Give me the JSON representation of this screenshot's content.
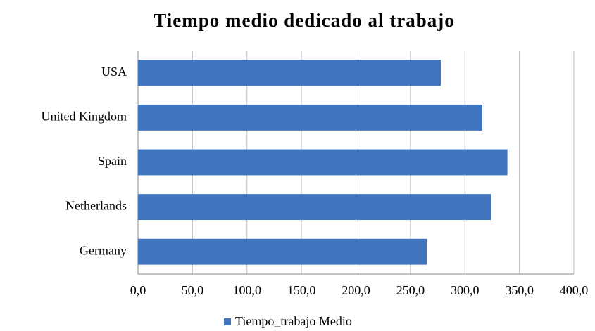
{
  "chart_data": {
    "type": "bar",
    "orientation": "horizontal",
    "title": "Tiempo medio dedicado al trabajo",
    "categories": [
      "USA",
      "United Kingdom",
      "Spain",
      "Netherlands",
      "Germany"
    ],
    "series": [
      {
        "name": "Tiempo_trabajo Medio",
        "color": "#4275c0",
        "values": [
          278,
          316,
          339,
          324,
          265
        ]
      }
    ],
    "xlim": [
      0,
      400
    ],
    "xticks": [
      {
        "value": 0,
        "label": "0,0"
      },
      {
        "value": 50,
        "label": "50,0"
      },
      {
        "value": 100,
        "label": "100,0"
      },
      {
        "value": 150,
        "label": "150,0"
      },
      {
        "value": 200,
        "label": "200,0"
      },
      {
        "value": 250,
        "label": "250,0"
      },
      {
        "value": 300,
        "label": "300,0"
      },
      {
        "value": 350,
        "label": "350,0"
      },
      {
        "value": 400,
        "label": "400,0"
      }
    ],
    "grid": true,
    "legend": "bottom"
  }
}
